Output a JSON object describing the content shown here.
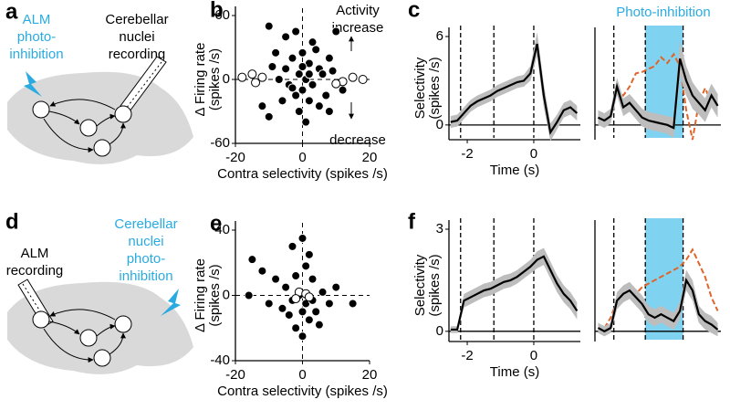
{
  "diagrams": [
    {
      "label": "a",
      "left_text": [
        "ALM",
        "photo-",
        "inhibition"
      ],
      "right_text": [
        "Cerebellar",
        "nuclei",
        "recording"
      ]
    },
    {
      "label": "d",
      "left_text": [
        "ALM",
        "recording"
      ],
      "right_text": [
        "Cerebellar",
        "nuclei",
        "photo-",
        "inhibition"
      ]
    }
  ],
  "chart_data": [
    {
      "type": "scatter",
      "label": "b",
      "ylabel": [
        "Δ Firing rate",
        "(spikes /s)"
      ],
      "xlabel": "Contra selectivity (spikes /s)",
      "annotations": [
        "Activity",
        "increase",
        "decrease"
      ],
      "xlim": [
        -20,
        20
      ],
      "ylim": [
        -60,
        60
      ],
      "xticks": [
        -20,
        0,
        20
      ],
      "yticks": [
        -60,
        0,
        60
      ],
      "zero_lines": true,
      "series": [
        {
          "color": "#000000",
          "open": false,
          "x": [
            -10,
            -5,
            -2,
            3,
            8,
            10,
            -8,
            -3,
            0,
            2,
            5,
            -5,
            -1,
            1,
            3,
            -4,
            -2,
            0,
            2,
            5,
            8,
            -6,
            -10,
            -12,
            12,
            6,
            -7,
            4,
            -1,
            1,
            7,
            -3,
            9,
            -9,
            0,
            2
          ],
          "values": [
            50,
            40,
            45,
            35,
            20,
            45,
            25,
            20,
            25,
            15,
            10,
            10,
            5,
            0,
            -5,
            -5,
            -15,
            -10,
            -20,
            -25,
            -30,
            -20,
            -35,
            -25,
            -10,
            5,
            0,
            28,
            -30,
            -40,
            -15,
            -8,
            8,
            12,
            12,
            5
          ]
        },
        {
          "color": "#000000",
          "open": true,
          "x": [
            -15,
            -12,
            -14,
            12,
            15,
            18,
            -18,
            10
          ],
          "values": [
            5,
            2,
            -3,
            -2,
            2,
            0,
            2,
            -4
          ]
        }
      ]
    },
    {
      "type": "line",
      "label": "c",
      "ylabel": [
        "Selectivity",
        "(spikes /s)"
      ],
      "xlabel": "Time (s)",
      "xlim": [
        -2.55,
        1.4
      ],
      "ylim": [
        -1,
        6
      ],
      "xticks": [
        -2,
        0
      ],
      "yticks": [
        0,
        6
      ],
      "events": [
        -2.2,
        -1.2,
        0
      ],
      "zero_line": true,
      "x": [
        -2.5,
        -2.3,
        -2.1,
        -1.9,
        -1.7,
        -1.5,
        -1.3,
        -1.1,
        -0.9,
        -0.7,
        -0.5,
        -0.3,
        -0.1,
        0.1,
        0.3,
        0.5,
        0.7,
        0.9,
        1.1,
        1.3
      ],
      "series": [
        {
          "color": "#000000",
          "values": [
            0.2,
            0.3,
            0.8,
            1.3,
            1.6,
            1.8,
            2.0,
            2.3,
            2.5,
            2.7,
            2.9,
            3.0,
            3.5,
            5.5,
            2.0,
            -0.5,
            0.2,
            1.0,
            1.2,
            0.8
          ],
          "errors": [
            0.4,
            0.4,
            0.4,
            0.4,
            0.4,
            0.4,
            0.4,
            0.4,
            0.4,
            0.4,
            0.4,
            0.4,
            0.5,
            0.8,
            0.8,
            0.6,
            0.5,
            0.5,
            0.5,
            0.5
          ]
        }
      ]
    },
    {
      "type": "line",
      "title": "Photo-inhibition",
      "xlim": [
        -2.8,
        1.2
      ],
      "ylim": [
        -1,
        6
      ],
      "events": [
        -2.2,
        -1.2,
        0
      ],
      "shade": [
        -1.2,
        0
      ],
      "shade_color": "#7fd3f0",
      "zero_line": true,
      "x": [
        -2.7,
        -2.5,
        -2.3,
        -2.1,
        -1.9,
        -1.7,
        -1.5,
        -1.3,
        -1.1,
        -0.9,
        -0.7,
        -0.5,
        -0.3,
        -0.1,
        0.1,
        0.3,
        0.5,
        0.7,
        0.9,
        1.1
      ],
      "series": [
        {
          "color": "#e0652a",
          "dashed": true,
          "values": [
            null,
            null,
            null,
            2.5,
            2.0,
            2.6,
            3.5,
            3.6,
            3.8,
            4.0,
            4.6,
            4.2,
            4.8,
            4.0,
            1.0,
            -1.0,
            1.5,
            2.5,
            1.5,
            2.0
          ]
        },
        {
          "color": "#000000",
          "values": [
            0.5,
            0.3,
            0.6,
            2.6,
            1.2,
            1.5,
            1.0,
            0.5,
            0.3,
            0.2,
            0.1,
            0.0,
            -0.2,
            4.5,
            3.0,
            2.0,
            1.5,
            1.0,
            2.0,
            1.3
          ],
          "errors": [
            0.5,
            0.5,
            0.5,
            0.6,
            0.6,
            0.6,
            0.6,
            0.6,
            0.6,
            0.6,
            0.6,
            0.6,
            0.7,
            1.2,
            1.0,
            0.9,
            0.8,
            0.8,
            0.8,
            0.8
          ]
        }
      ]
    },
    {
      "type": "scatter",
      "label": "e",
      "ylabel": [
        "Δ Firing rate",
        "(spikes /s)"
      ],
      "xlabel": "Contra selectivity (spikes /s)",
      "xlim": [
        -20,
        20
      ],
      "ylim": [
        -40,
        40
      ],
      "xticks": [
        -20,
        0,
        20
      ],
      "yticks": [
        -40,
        0,
        40
      ],
      "zero_lines": true,
      "series": [
        {
          "color": "#000000",
          "open": false,
          "x": [
            -15,
            -12,
            -8,
            -5,
            -3,
            0,
            2,
            3,
            -1,
            1,
            4,
            -4,
            -2,
            0,
            2,
            6,
            8,
            -6,
            10,
            15,
            -10,
            -16,
            5,
            -2,
            1,
            0,
            3,
            -3
          ],
          "values": [
            22,
            15,
            10,
            5,
            30,
            35,
            25,
            10,
            0,
            -5,
            -10,
            -12,
            -20,
            -25,
            -15,
            2,
            -5,
            -8,
            5,
            -5,
            -5,
            0,
            -18,
            12,
            18,
            -10,
            -3,
            -3
          ]
        },
        {
          "color": "#000000",
          "open": true,
          "x": [
            -1,
            1,
            2,
            -2
          ],
          "values": [
            2,
            1,
            -1,
            -2
          ]
        }
      ]
    },
    {
      "type": "line",
      "label": "f",
      "ylabel": [
        "Selectivity",
        "(spikes /s)"
      ],
      "xlabel": "Time (s)",
      "xlim": [
        -2.55,
        1.4
      ],
      "ylim": [
        -0.3,
        3
      ],
      "xticks": [
        -2,
        0
      ],
      "yticks": [
        0,
        3
      ],
      "events": [
        -2.2,
        -1.2,
        0
      ],
      "zero_line": true,
      "x": [
        -2.5,
        -2.3,
        -2.1,
        -1.9,
        -1.7,
        -1.5,
        -1.3,
        -1.1,
        -0.9,
        -0.7,
        -0.5,
        -0.3,
        -0.1,
        0.1,
        0.3,
        0.5,
        0.7,
        0.9,
        1.1,
        1.3
      ],
      "series": [
        {
          "color": "#000000",
          "values": [
            0.05,
            0.05,
            0.9,
            1.0,
            1.1,
            1.2,
            1.25,
            1.35,
            1.45,
            1.5,
            1.6,
            1.75,
            1.9,
            2.1,
            2.2,
            1.8,
            1.4,
            1.1,
            0.9,
            0.6
          ],
          "errors": [
            0.1,
            0.1,
            0.2,
            0.2,
            0.2,
            0.2,
            0.2,
            0.2,
            0.2,
            0.2,
            0.2,
            0.2,
            0.2,
            0.25,
            0.25,
            0.25,
            0.25,
            0.25,
            0.25,
            0.25
          ]
        }
      ]
    },
    {
      "type": "line",
      "xlim": [
        -2.8,
        1.2
      ],
      "ylim": [
        -0.3,
        3
      ],
      "events": [
        -2.2,
        -1.2,
        0
      ],
      "shade": [
        -1.2,
        0
      ],
      "shade_color": "#7fd3f0",
      "zero_line": true,
      "x": [
        -2.7,
        -2.5,
        -2.3,
        -2.1,
        -1.9,
        -1.7,
        -1.5,
        -1.3,
        -1.1,
        -0.9,
        -0.7,
        -0.5,
        -0.3,
        -0.1,
        0.1,
        0.3,
        0.5,
        0.7,
        0.9,
        1.1
      ],
      "series": [
        {
          "color": "#e0652a",
          "dashed": true,
          "values": [
            null,
            0.1,
            0.4,
            0.9,
            1.1,
            1.2,
            1.1,
            1.3,
            1.4,
            1.5,
            1.6,
            1.7,
            1.8,
            1.9,
            2.1,
            2.4,
            2.0,
            1.6,
            1.0,
            0.6
          ]
        },
        {
          "color": "#000000",
          "values": [
            0.1,
            0.0,
            0.1,
            0.9,
            1.1,
            1.2,
            1.0,
            0.8,
            0.5,
            0.4,
            0.5,
            0.4,
            0.3,
            0.6,
            1.5,
            1.2,
            0.5,
            0.3,
            0.2,
            0.05
          ],
          "errors": [
            0.15,
            0.15,
            0.15,
            0.25,
            0.25,
            0.25,
            0.25,
            0.25,
            0.25,
            0.25,
            0.25,
            0.25,
            0.25,
            0.25,
            0.3,
            0.3,
            0.25,
            0.25,
            0.25,
            0.2
          ]
        }
      ]
    }
  ]
}
